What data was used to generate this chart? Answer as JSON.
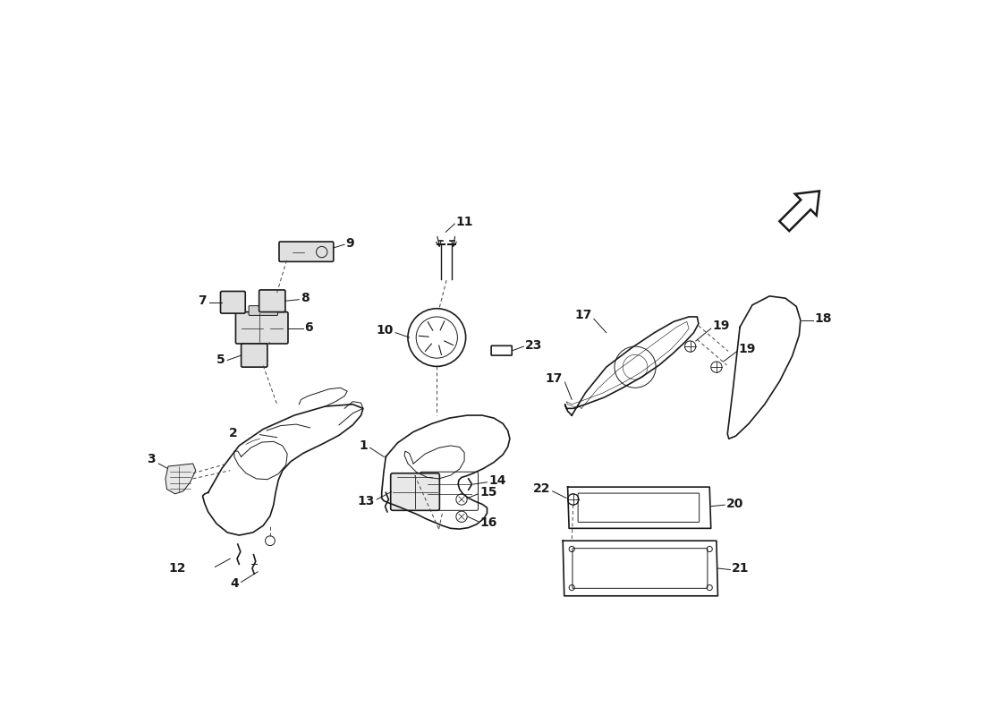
{
  "bg_color": "#ffffff",
  "line_color": "#1a1a1a",
  "lw_main": 1.2,
  "lw_thin": 0.7,
  "lw_leader": 0.7,
  "label_fontsize": 10,
  "fig_width": 11.0,
  "fig_height": 8.0,
  "dpi": 100
}
